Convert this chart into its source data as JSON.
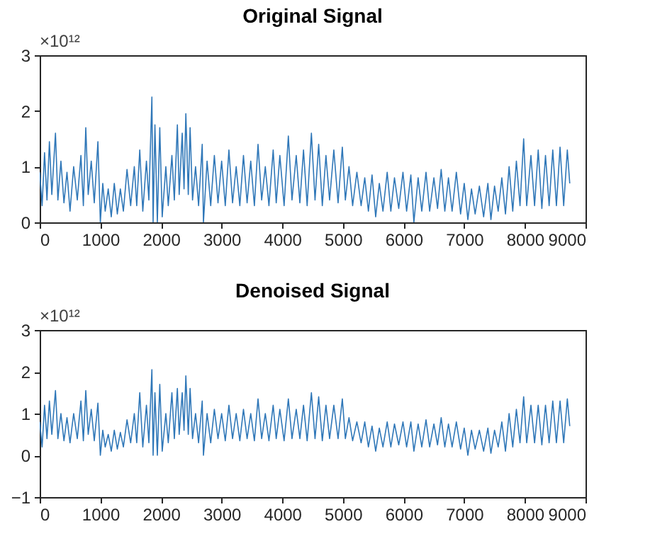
{
  "chart_data": [
    {
      "type": "line",
      "title": "Original Signal",
      "annotations": [
        "×10¹²"
      ],
      "x": [
        0,
        40,
        80,
        120,
        160,
        200,
        260,
        300,
        350,
        400,
        450,
        500,
        560,
        620,
        680,
        720,
        760,
        800,
        850,
        900,
        960,
        1000,
        1040,
        1080,
        1130,
        1180,
        1230,
        1280,
        1330,
        1380,
        1440,
        1500,
        1560,
        1600,
        1650,
        1700,
        1760,
        1800,
        1850,
        1870,
        1900,
        1940,
        1980,
        2020,
        2080,
        2120,
        2180,
        2220,
        2270,
        2300,
        2350,
        2380,
        2410,
        2450,
        2480,
        2520,
        2570,
        2620,
        2680,
        2700,
        2760,
        2820,
        2880,
        2940,
        3000,
        3060,
        3120,
        3180,
        3240,
        3300,
        3360,
        3420,
        3480,
        3540,
        3600,
        3660,
        3720,
        3780,
        3850,
        3900,
        3960,
        4030,
        4100,
        4160,
        4230,
        4290,
        4350,
        4410,
        4480,
        4540,
        4600,
        4660,
        4720,
        4780,
        4850,
        4920,
        4990,
        5040,
        5100,
        5160,
        5230,
        5300,
        5360,
        5420,
        5480,
        5540,
        5600,
        5660,
        5730,
        5790,
        5850,
        5920,
        5990,
        6050,
        6120,
        6170,
        6240,
        6300,
        6370,
        6430,
        6500,
        6560,
        6620,
        6680,
        6740,
        6800,
        6870,
        6940,
        7000,
        7060,
        7120,
        7180,
        7250,
        7320,
        7390,
        7440,
        7500,
        7560,
        7620,
        7680,
        7740,
        7800,
        7860,
        7920,
        7980,
        8030,
        8100,
        8160,
        8220,
        8280,
        8340,
        8400,
        8460,
        8520,
        8580,
        8640,
        8700,
        8740
      ],
      "series": [
        {
          "color": "#2f77b8",
          "values": [
            0.9,
            0.3,
            1.25,
            0.4,
            1.45,
            0.5,
            1.6,
            0.4,
            1.1,
            0.35,
            0.9,
            0.2,
            1.0,
            0.4,
            1.2,
            0.3,
            1.7,
            0.5,
            1.1,
            0.35,
            1.45,
            0.0,
            0.7,
            0.2,
            0.6,
            0.1,
            0.7,
            0.15,
            0.6,
            0.2,
            0.95,
            0.3,
            1.0,
            0.3,
            1.3,
            0.2,
            1.1,
            0.4,
            2.25,
            0.0,
            1.75,
            0.0,
            1.7,
            0.1,
            1.0,
            0.3,
            1.2,
            0.4,
            1.75,
            0.5,
            1.6,
            0.6,
            1.95,
            0.5,
            1.7,
            0.4,
            1.0,
            0.3,
            1.4,
            0.0,
            1.1,
            0.3,
            1.2,
            0.35,
            1.1,
            0.3,
            1.3,
            0.35,
            1.0,
            0.3,
            1.2,
            0.35,
            1.1,
            0.3,
            1.4,
            0.4,
            1.0,
            0.3,
            1.3,
            0.35,
            1.2,
            0.3,
            1.55,
            0.4,
            1.2,
            0.35,
            1.3,
            0.3,
            1.6,
            0.4,
            1.4,
            0.3,
            1.2,
            0.4,
            1.3,
            0.35,
            1.35,
            0.4,
            1.0,
            0.3,
            0.9,
            0.3,
            0.8,
            0.2,
            0.85,
            0.1,
            0.7,
            0.2,
            0.9,
            0.2,
            0.8,
            0.25,
            0.9,
            0.2,
            0.85,
            0.0,
            0.8,
            0.2,
            0.9,
            0.2,
            0.8,
            0.25,
            0.95,
            0.2,
            0.8,
            0.2,
            0.9,
            0.15,
            0.7,
            0.05,
            0.6,
            0.15,
            0.65,
            0.1,
            0.7,
            0.05,
            0.65,
            0.2,
            0.8,
            0.15,
            1.0,
            0.2,
            1.1,
            0.3,
            1.5,
            0.3,
            1.2,
            0.3,
            1.3,
            0.25,
            1.2,
            0.3,
            1.3,
            0.3,
            1.35,
            0.3,
            1.3,
            0.7
          ]
        }
      ],
      "xlim": [
        0,
        9000
      ],
      "xticks": [
        0,
        1000,
        2000,
        3000,
        4000,
        5000,
        6000,
        7000,
        8000,
        9000
      ],
      "ylim": [
        0,
        3
      ],
      "yticks": [
        0,
        1,
        2,
        3
      ],
      "grid": false,
      "marker": "none",
      "line_style": "solid"
    },
    {
      "type": "line",
      "title": "Denoised Signal",
      "annotations": [
        "×10¹²"
      ],
      "x": [
        0,
        40,
        80,
        120,
        160,
        200,
        260,
        300,
        350,
        400,
        450,
        500,
        560,
        620,
        680,
        720,
        760,
        800,
        850,
        900,
        960,
        1000,
        1040,
        1080,
        1130,
        1180,
        1230,
        1280,
        1330,
        1380,
        1440,
        1500,
        1560,
        1600,
        1650,
        1700,
        1760,
        1800,
        1850,
        1870,
        1900,
        1940,
        1980,
        2020,
        2080,
        2120,
        2180,
        2220,
        2270,
        2300,
        2350,
        2380,
        2410,
        2450,
        2480,
        2520,
        2570,
        2620,
        2680,
        2700,
        2760,
        2820,
        2880,
        2940,
        3000,
        3060,
        3120,
        3180,
        3240,
        3300,
        3360,
        3420,
        3480,
        3540,
        3600,
        3660,
        3720,
        3780,
        3850,
        3900,
        3960,
        4030,
        4100,
        4160,
        4230,
        4290,
        4350,
        4410,
        4480,
        4540,
        4600,
        4660,
        4720,
        4780,
        4850,
        4920,
        4990,
        5040,
        5100,
        5160,
        5230,
        5300,
        5360,
        5420,
        5480,
        5540,
        5600,
        5660,
        5730,
        5790,
        5850,
        5920,
        5990,
        6050,
        6120,
        6170,
        6240,
        6300,
        6370,
        6430,
        6500,
        6560,
        6620,
        6680,
        6740,
        6800,
        6870,
        6940,
        7000,
        7060,
        7120,
        7180,
        7250,
        7320,
        7390,
        7440,
        7500,
        7560,
        7620,
        7680,
        7740,
        7800,
        7860,
        7920,
        7980,
        8030,
        8100,
        8160,
        8220,
        8280,
        8340,
        8400,
        8460,
        8520,
        8580,
        8640,
        8700,
        8740
      ],
      "series": [
        {
          "color": "#2f77b8",
          "values": [
            0.8,
            0.2,
            1.2,
            0.4,
            1.3,
            0.5,
            1.55,
            0.4,
            1.0,
            0.35,
            0.9,
            0.3,
            1.0,
            0.4,
            1.3,
            0.35,
            1.55,
            0.5,
            1.1,
            0.35,
            1.25,
            0.0,
            0.6,
            0.2,
            0.5,
            0.1,
            0.6,
            0.15,
            0.55,
            0.2,
            0.85,
            0.3,
            1.0,
            0.3,
            1.5,
            0.2,
            1.2,
            0.3,
            2.05,
            0.0,
            1.5,
            0.0,
            1.7,
            0.1,
            1.0,
            0.3,
            1.5,
            0.4,
            1.6,
            0.5,
            1.5,
            0.6,
            1.9,
            0.5,
            1.6,
            0.4,
            1.0,
            0.3,
            1.3,
            0.0,
            1.0,
            0.3,
            1.1,
            0.4,
            1.0,
            0.35,
            1.2,
            0.4,
            1.0,
            0.35,
            1.1,
            0.4,
            1.0,
            0.35,
            1.35,
            0.4,
            1.0,
            0.35,
            1.2,
            0.4,
            1.1,
            0.35,
            1.35,
            0.4,
            1.1,
            0.4,
            1.2,
            0.35,
            1.5,
            0.4,
            1.4,
            0.35,
            1.2,
            0.4,
            1.2,
            0.4,
            1.35,
            0.4,
            0.9,
            0.35,
            0.8,
            0.3,
            0.8,
            0.2,
            0.7,
            0.1,
            0.65,
            0.2,
            0.8,
            0.2,
            0.75,
            0.25,
            0.8,
            0.2,
            0.8,
            0.1,
            0.75,
            0.2,
            0.85,
            0.2,
            0.75,
            0.25,
            0.9,
            0.2,
            0.75,
            0.2,
            0.8,
            0.15,
            0.65,
            0.0,
            0.6,
            0.15,
            0.6,
            0.1,
            0.65,
            0.05,
            0.6,
            0.2,
            0.8,
            0.1,
            1.0,
            0.2,
            1.1,
            0.3,
            1.4,
            0.3,
            1.2,
            0.3,
            1.2,
            0.25,
            1.2,
            0.3,
            1.3,
            0.3,
            1.3,
            0.3,
            1.35,
            0.7
          ]
        }
      ],
      "xlim": [
        0,
        9000
      ],
      "xticks": [
        0,
        1000,
        2000,
        3000,
        4000,
        5000,
        6000,
        7000,
        8000,
        9000
      ],
      "ylim": [
        -1,
        3
      ],
      "yticks": [
        -1,
        0,
        1,
        2,
        3
      ],
      "grid": false,
      "marker": "none",
      "line_style": "solid"
    }
  ]
}
